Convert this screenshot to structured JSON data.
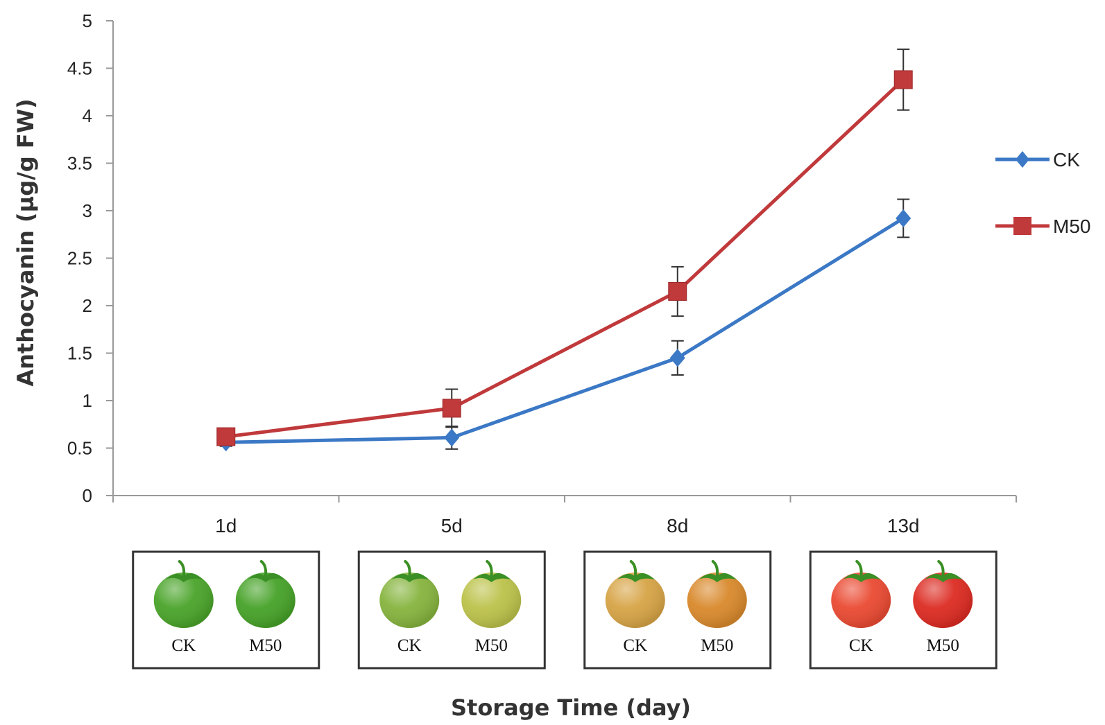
{
  "chart_data": {
    "type": "line",
    "categories": [
      "1d",
      "5d",
      "8d",
      "13d"
    ],
    "xlabel": "Storage Time (day)",
    "ylabel": "Anthocyanin (µg/g FW)",
    "ylim": [
      0,
      5
    ],
    "yticks": [
      "0",
      "0.5",
      "1",
      "1.5",
      "2",
      "2.5",
      "3",
      "3.5",
      "4",
      "4.5",
      "5"
    ],
    "grid": false,
    "legend_position": "right",
    "series": [
      {
        "name": "CK",
        "color": "#3b78c5",
        "marker": "diamond",
        "values": [
          0.56,
          0.61,
          1.45,
          2.92
        ],
        "errors": [
          0.04,
          0.12,
          0.18,
          0.2
        ]
      },
      {
        "name": "M50",
        "color": "#c0393b",
        "marker": "square",
        "values": [
          0.62,
          0.92,
          2.15,
          4.38
        ],
        "errors": [
          0.04,
          0.2,
          0.26,
          0.32
        ]
      }
    ],
    "fruit_panels": [
      {
        "day": "1d",
        "labels": [
          "CK",
          "M50"
        ],
        "colors": [
          "#4aa42a",
          "#46a228"
        ]
      },
      {
        "day": "5d",
        "labels": [
          "CK",
          "M50"
        ],
        "colors": [
          "#86b43e",
          "#bcc24a"
        ]
      },
      {
        "day": "8d",
        "labels": [
          "CK",
          "M50"
        ],
        "colors": [
          "#d7a446",
          "#d9892c"
        ]
      },
      {
        "day": "13d",
        "labels": [
          "CK",
          "M50"
        ],
        "colors": [
          "#ea4a32",
          "#dc2b22"
        ]
      }
    ]
  }
}
